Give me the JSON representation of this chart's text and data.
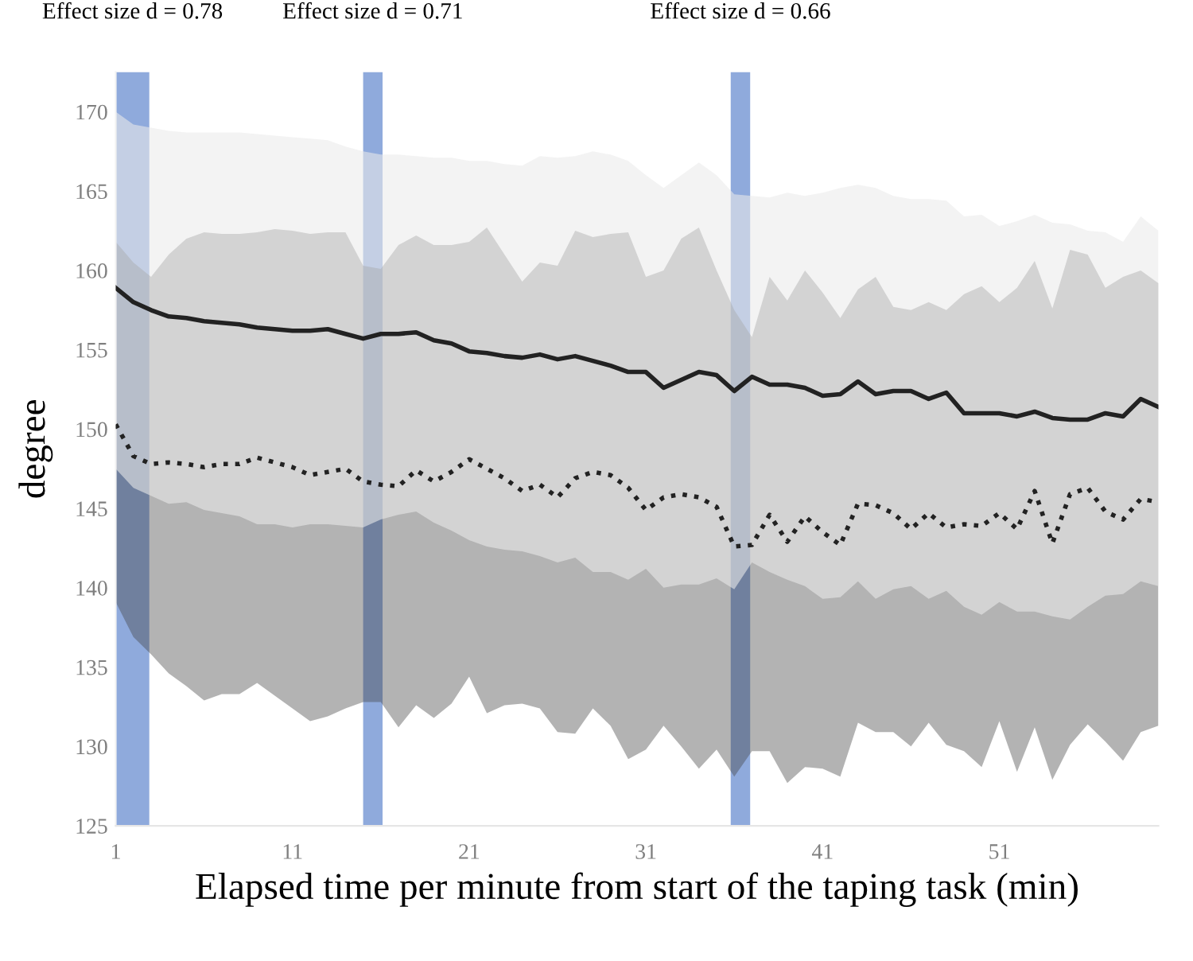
{
  "chart_data": {
    "type": "line",
    "xlabel": "Elapsed time per minute from start of the taping task (min)",
    "ylabel": "degree",
    "x": [
      1,
      2,
      3,
      4,
      5,
      6,
      7,
      8,
      9,
      10,
      11,
      12,
      13,
      14,
      15,
      16,
      17,
      18,
      19,
      20,
      21,
      22,
      23,
      24,
      25,
      26,
      27,
      28,
      29,
      30,
      31,
      32,
      33,
      34,
      35,
      36,
      37,
      38,
      39,
      40,
      41,
      42,
      43,
      44,
      45,
      46,
      47,
      48,
      49,
      50,
      51,
      52,
      53,
      54,
      55,
      56,
      57,
      58,
      59,
      60
    ],
    "series": [
      {
        "color": "#222222",
        "line_style": "solid",
        "values": [
          158.9,
          158.0,
          157.5,
          157.1,
          157.0,
          156.8,
          156.7,
          156.6,
          156.4,
          156.3,
          156.2,
          156.2,
          156.3,
          156.0,
          155.7,
          156.0,
          156.0,
          156.1,
          155.6,
          155.4,
          154.9,
          154.8,
          154.6,
          154.5,
          154.7,
          154.4,
          154.6,
          154.3,
          154.0,
          153.6,
          153.6,
          152.6,
          153.1,
          153.6,
          153.4,
          152.4,
          153.3,
          152.8,
          152.8,
          152.6,
          152.1,
          152.2,
          153.0,
          152.2,
          152.4,
          152.4,
          151.9,
          152.3,
          151.0,
          151.0,
          151.0,
          150.8,
          151.1,
          150.7,
          150.6,
          150.6,
          151.0,
          150.8,
          151.9,
          151.4
        ],
        "upper": [
          170.0,
          169.2,
          169.0,
          168.8,
          168.7,
          168.7,
          168.7,
          168.7,
          168.6,
          168.5,
          168.4,
          168.3,
          168.2,
          167.8,
          167.5,
          167.3,
          167.3,
          167.2,
          167.1,
          167.1,
          166.9,
          166.9,
          166.7,
          166.6,
          167.2,
          167.1,
          167.2,
          167.5,
          167.3,
          166.9,
          166.0,
          165.2,
          166.0,
          166.8,
          166.0,
          164.8,
          164.7,
          164.6,
          164.9,
          164.7,
          164.9,
          165.2,
          165.4,
          165.2,
          164.7,
          164.5,
          164.5,
          164.4,
          163.4,
          163.5,
          162.8,
          163.1,
          163.5,
          163.0,
          162.9,
          162.5,
          162.4,
          161.8,
          163.4,
          162.5
        ],
        "lower": [
          147.5,
          146.3,
          145.8,
          145.3,
          145.4,
          144.9,
          144.7,
          144.5,
          144.0,
          144.0,
          143.8,
          144.0,
          144.0,
          143.9,
          143.8,
          144.3,
          144.6,
          144.8,
          144.1,
          143.6,
          143.0,
          142.6,
          142.4,
          142.3,
          142.0,
          141.6,
          141.9,
          141.0,
          141.0,
          140.5,
          141.2,
          140.0,
          140.2,
          140.2,
          140.6,
          139.9,
          141.6,
          141.0,
          140.5,
          140.1,
          139.3,
          139.4,
          140.4,
          139.3,
          139.9,
          140.1,
          139.3,
          139.8,
          138.8,
          138.3,
          139.1,
          138.5,
          138.5,
          138.2,
          138.0,
          138.8,
          139.5,
          139.6,
          140.4,
          140.1
        ]
      },
      {
        "color": "#222222",
        "line_style": "dotted",
        "values": [
          150.3,
          148.3,
          147.8,
          147.9,
          147.8,
          147.6,
          147.8,
          147.8,
          148.2,
          147.9,
          147.6,
          147.1,
          147.3,
          147.5,
          146.7,
          146.5,
          146.4,
          147.4,
          146.7,
          147.3,
          148.1,
          147.5,
          146.9,
          146.1,
          146.5,
          145.7,
          146.9,
          147.3,
          147.1,
          146.3,
          144.9,
          145.7,
          145.9,
          145.7,
          145.1,
          142.6,
          142.7,
          144.6,
          142.9,
          144.5,
          143.5,
          142.7,
          145.3,
          145.2,
          144.7,
          143.7,
          144.7,
          143.8,
          144.0,
          143.9,
          144.7,
          143.7,
          146.1,
          142.8,
          145.9,
          146.3,
          144.8,
          144.3,
          145.6,
          145.4
        ],
        "upper": [
          161.8,
          160.5,
          159.6,
          161.0,
          162.0,
          162.4,
          162.3,
          162.3,
          162.4,
          162.6,
          162.5,
          162.3,
          162.4,
          162.4,
          160.3,
          160.1,
          161.6,
          162.2,
          161.6,
          161.6,
          161.8,
          162.7,
          161.0,
          159.3,
          160.5,
          160.3,
          162.5,
          162.1,
          162.3,
          162.4,
          159.6,
          160.0,
          162.0,
          162.7,
          160.0,
          157.5,
          155.8,
          159.6,
          158.1,
          160.0,
          158.6,
          157.0,
          158.8,
          159.6,
          157.7,
          157.5,
          158.0,
          157.5,
          158.5,
          159.0,
          158.0,
          158.9,
          160.6,
          157.6,
          161.3,
          161.0,
          158.9,
          159.6,
          160.0,
          159.2
        ],
        "lower": [
          139.1,
          136.9,
          135.8,
          134.6,
          133.8,
          132.9,
          133.3,
          133.3,
          134.0,
          133.2,
          132.4,
          131.6,
          131.9,
          132.4,
          132.8,
          132.8,
          131.2,
          132.6,
          131.8,
          132.7,
          134.4,
          132.1,
          132.6,
          132.7,
          132.4,
          130.9,
          130.8,
          132.4,
          131.3,
          129.2,
          129.8,
          131.3,
          130.0,
          128.6,
          129.8,
          128.1,
          129.7,
          129.7,
          127.7,
          128.7,
          128.6,
          128.1,
          131.5,
          130.9,
          130.9,
          130.0,
          131.5,
          130.1,
          129.7,
          128.7,
          131.6,
          128.4,
          131.2,
          127.9,
          130.1,
          131.4,
          130.3,
          129.1,
          130.9,
          131.3
        ]
      }
    ],
    "xlim": [
      1,
      60
    ],
    "xticks": [
      1,
      11,
      21,
      31,
      41,
      51
    ],
    "ylim": [
      125,
      172.5
    ],
    "yticks": [
      125,
      130,
      135,
      140,
      145,
      150,
      155,
      160,
      165,
      170
    ],
    "bands": [
      {
        "axis": "x",
        "from": 1,
        "to": 2.9,
        "label": "Effect size d = 0.78",
        "color": "#4472c4"
      },
      {
        "axis": "x",
        "from": 15,
        "to": 16.1,
        "label": "Effect size d = 0.71",
        "color": "#4472c4"
      },
      {
        "axis": "x",
        "from": 35.8,
        "to": 36.9,
        "label": "Effect size d = 0.66",
        "color": "#4472c4"
      }
    ],
    "grid": false,
    "marker": "none"
  }
}
